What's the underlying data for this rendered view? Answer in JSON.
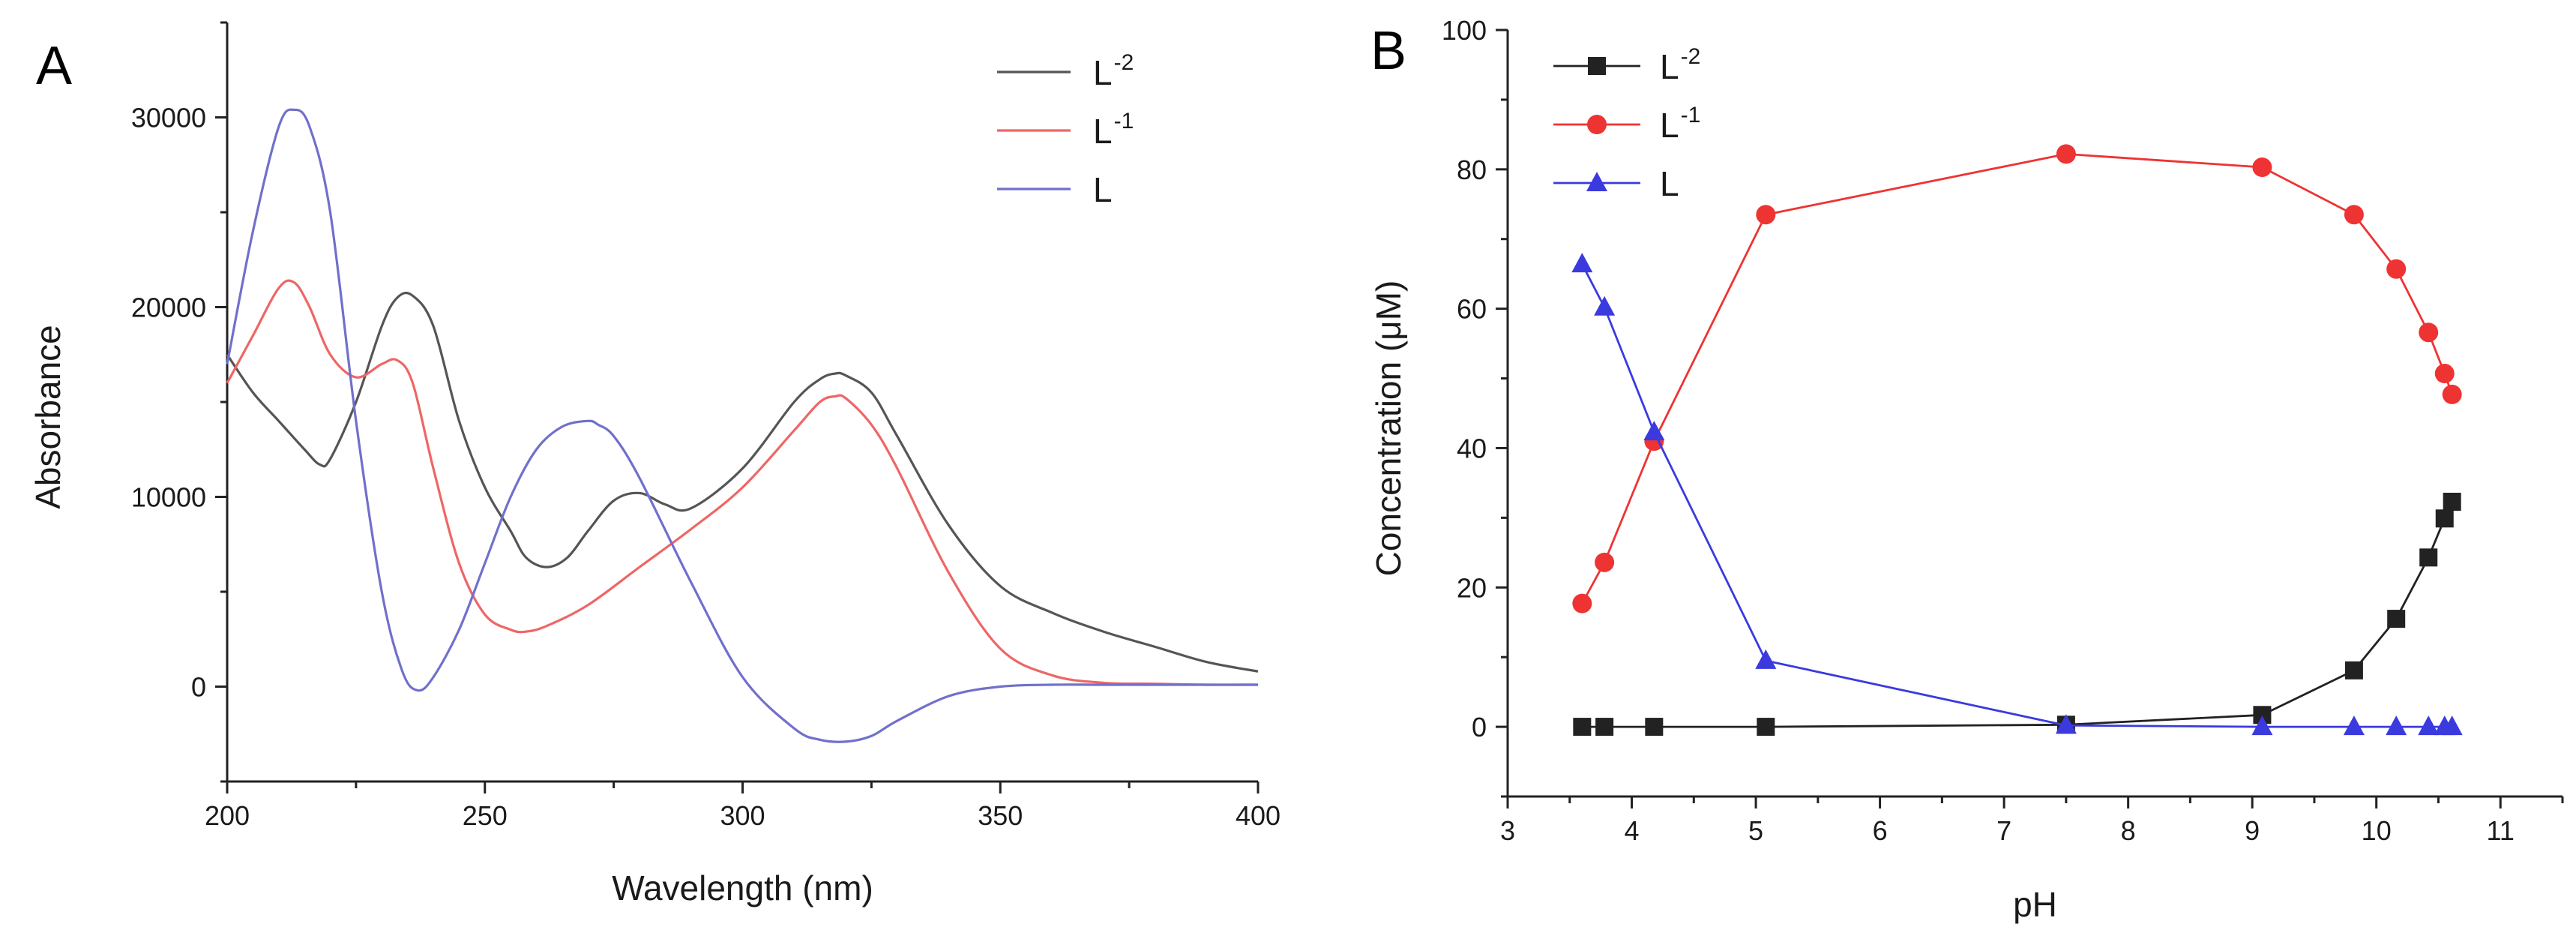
{
  "colors": {
    "black": "#222222",
    "red": "#ee3333",
    "blue": "#3a3adf",
    "specL2": "#555555",
    "specL1": "#ee6666",
    "specL": "#7070cc"
  },
  "panels": {
    "A": {
      "letter": "A"
    },
    "B": {
      "letter": "B"
    }
  },
  "chart_data": [
    {
      "panel": "A",
      "type": "line",
      "xlabel": "Wavelength (nm)",
      "ylabel": "Absorbance",
      "xlim": [
        200,
        400
      ],
      "ylim": [
        -5000,
        35000
      ],
      "xticks": [
        200,
        250,
        300,
        350,
        400
      ],
      "yticks": [
        0,
        10000,
        20000,
        30000
      ],
      "legend_position": "top-right",
      "series": [
        {
          "name": "L-2",
          "base": "L",
          "sup": "-2",
          "color": "#555555",
          "x": [
            200,
            205,
            210,
            215,
            218,
            220,
            225,
            230,
            233,
            236,
            240,
            245,
            250,
            255,
            258,
            262,
            266,
            270,
            275,
            280,
            285,
            290,
            300,
            310,
            315,
            318,
            320,
            325,
            330,
            340,
            350,
            360,
            370,
            380,
            390,
            400
          ],
          "y": [
            17500,
            15500,
            14000,
            12500,
            11700,
            12000,
            15000,
            19000,
            20500,
            20600,
            19000,
            14000,
            10500,
            8200,
            6800,
            6300,
            6800,
            8200,
            9800,
            10200,
            9600,
            9400,
            11500,
            15000,
            16200,
            16500,
            16400,
            15500,
            13200,
            8500,
            5300,
            3900,
            2900,
            2100,
            1300,
            800
          ]
        },
        {
          "name": "L-1",
          "base": "L",
          "sup": "-1",
          "color": "#ee6666",
          "x": [
            200,
            205,
            210,
            213,
            216,
            220,
            225,
            230,
            233,
            236,
            240,
            245,
            250,
            255,
            258,
            262,
            270,
            280,
            290,
            300,
            310,
            315,
            318,
            320,
            325,
            330,
            340,
            350,
            360,
            370,
            380,
            390,
            400
          ],
          "y": [
            16000,
            18500,
            21000,
            21300,
            20000,
            17500,
            16300,
            17000,
            17200,
            16000,
            11500,
            6500,
            3800,
            3000,
            2900,
            3200,
            4300,
            6300,
            8300,
            10500,
            13500,
            15000,
            15300,
            15200,
            13800,
            11500,
            6000,
            2000,
            600,
            200,
            150,
            100,
            100
          ]
        },
        {
          "name": "L",
          "base": "L",
          "sup": "",
          "color": "#7070cc",
          "x": [
            200,
            205,
            210,
            213,
            216,
            220,
            225,
            230,
            234,
            237,
            240,
            245,
            250,
            255,
            260,
            265,
            270,
            272,
            275,
            280,
            290,
            300,
            310,
            315,
            320,
            325,
            330,
            340,
            350,
            360,
            370,
            380,
            390,
            400
          ],
          "y": [
            17000,
            24000,
            29500,
            30400,
            29500,
            25000,
            14000,
            5000,
            800,
            -200,
            500,
            3000,
            6500,
            10000,
            12500,
            13700,
            14000,
            13800,
            13200,
            11000,
            5500,
            500,
            -2200,
            -2800,
            -2900,
            -2600,
            -1800,
            -500,
            0,
            100,
            100,
            100,
            100,
            100
          ]
        }
      ]
    },
    {
      "panel": "B",
      "type": "line",
      "xlabel": "pH",
      "ylabel": "Concentration (μM)",
      "xlim": [
        3,
        11.5
      ],
      "ylim": [
        -10,
        100
      ],
      "xticks": [
        3,
        4,
        5,
        6,
        7,
        8,
        9,
        10,
        11
      ],
      "yticks": [
        0,
        20,
        40,
        60,
        80,
        100
      ],
      "legend_position": "top-left",
      "series": [
        {
          "name": "L-2",
          "base": "L",
          "sup": "-2",
          "color": "#222222",
          "marker": "square",
          "x": [
            3.6,
            3.78,
            4.18,
            5.08,
            7.5,
            9.08,
            9.82,
            10.16,
            10.42,
            10.55,
            10.61
          ],
          "y": [
            0,
            0,
            0,
            0,
            0.3,
            1.7,
            8.1,
            15.5,
            24.3,
            29.9,
            32.3
          ]
        },
        {
          "name": "L-1",
          "base": "L",
          "sup": "-1",
          "color": "#ee3333",
          "marker": "circle",
          "x": [
            3.6,
            3.78,
            4.18,
            5.08,
            7.5,
            9.08,
            9.82,
            10.16,
            10.42,
            10.55,
            10.61
          ],
          "y": [
            17.7,
            23.6,
            41.0,
            73.5,
            82.2,
            80.3,
            73.5,
            65.7,
            56.6,
            50.7,
            47.7
          ]
        },
        {
          "name": "L",
          "base": "L",
          "sup": "",
          "color": "#3a3adf",
          "marker": "triangle",
          "x": [
            3.6,
            3.78,
            4.18,
            5.08,
            7.5,
            9.08,
            9.82,
            10.16,
            10.42,
            10.55,
            10.61
          ],
          "y": [
            66.4,
            60.2,
            42.3,
            9.5,
            0.2,
            0,
            0,
            0,
            0,
            0,
            0
          ]
        }
      ]
    }
  ]
}
